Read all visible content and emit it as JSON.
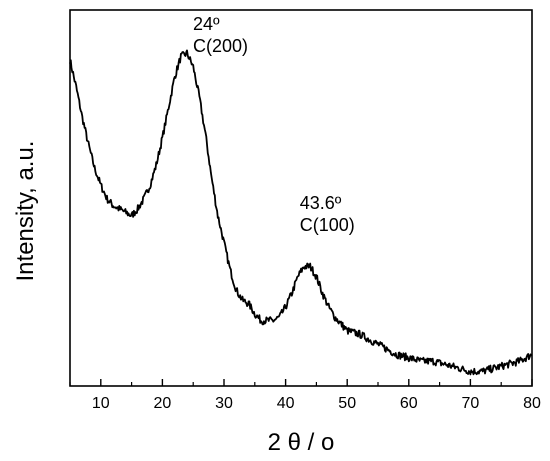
{
  "chart_data": {
    "type": "line",
    "title": "",
    "xlabel": "2 θ / o",
    "ylabel": "Intensity, a.u.",
    "xlim": [
      5,
      80
    ],
    "ylim": [
      0,
      1
    ],
    "y_ticks_labeled": false,
    "grid": false,
    "legend": "none",
    "x_ticks": [
      10,
      20,
      30,
      40,
      50,
      60,
      70,
      80
    ],
    "x_tick_labels": [
      "10",
      "20",
      "30",
      "40",
      "50",
      "60",
      "70",
      "80"
    ],
    "annotations": [
      {
        "lines": [
          "24º",
          "C(200)"
        ],
        "x": 24,
        "y": 0.96
      },
      {
        "lines": [
          "43.6º",
          "C(100)"
        ],
        "x": 43.6,
        "y": 0.43
      }
    ],
    "series": [
      {
        "line_color": "#000000",
        "x": [
          5,
          6,
          7,
          8,
          9,
          10,
          11,
          12,
          13,
          14,
          15,
          16,
          17,
          18,
          19,
          20,
          21,
          22,
          23,
          24,
          25,
          26,
          27,
          28,
          29,
          30,
          31,
          32,
          33,
          34,
          35,
          36,
          37,
          38,
          39,
          40,
          41,
          42,
          43,
          44,
          45,
          46,
          47,
          48,
          50,
          52,
          54,
          56,
          58,
          60,
          62,
          64,
          66,
          68,
          70,
          72,
          74,
          76,
          78,
          80
        ],
        "y": [
          0.93,
          0.85,
          0.76,
          0.68,
          0.61,
          0.56,
          0.52,
          0.5,
          0.49,
          0.48,
          0.47,
          0.49,
          0.52,
          0.56,
          0.62,
          0.7,
          0.79,
          0.88,
          0.94,
          0.95,
          0.91,
          0.82,
          0.71,
          0.58,
          0.47,
          0.39,
          0.31,
          0.25,
          0.22,
          0.21,
          0.18,
          0.16,
          0.16,
          0.16,
          0.17,
          0.2,
          0.24,
          0.29,
          0.32,
          0.32,
          0.29,
          0.24,
          0.2,
          0.17,
          0.13,
          0.12,
          0.1,
          0.08,
          0.06,
          0.05,
          0.04,
          0.04,
          0.03,
          0.02,
          0.01,
          0.01,
          0.02,
          0.03,
          0.04,
          0.06
        ]
      }
    ]
  }
}
